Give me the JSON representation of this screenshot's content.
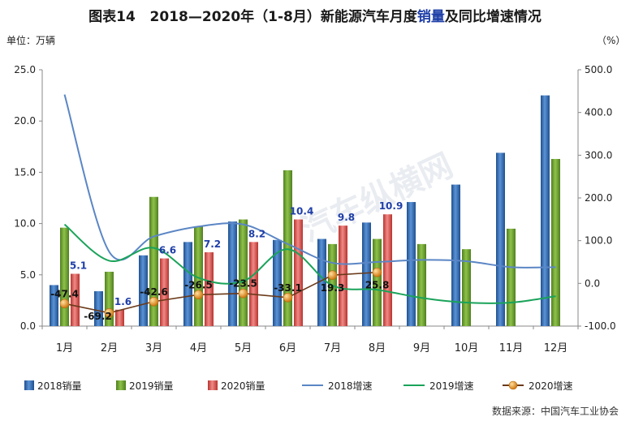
{
  "title_parts": {
    "prefix": "图表14",
    "main": "2018—2020年（1-8月）新能源汽车月度",
    "highlight": "销量",
    "suffix": "及同比增速情况"
  },
  "left_unit": "单位：万辆",
  "right_unit": "（%）",
  "source": "数据来源：中国汽车工业协会",
  "watermark": "汽车纵横网",
  "chart_data": {
    "type": "bar",
    "categories": [
      "1月",
      "2月",
      "3月",
      "4月",
      "5月",
      "6月",
      "7月",
      "8月",
      "9月",
      "10月",
      "11月",
      "12月"
    ],
    "bar_series": [
      {
        "name": "2018销量",
        "color": "#2f6fb5",
        "values": [
          4.0,
          3.4,
          6.9,
          8.2,
          10.2,
          8.4,
          8.5,
          10.1,
          12.1,
          13.8,
          16.9,
          22.5
        ]
      },
      {
        "name": "2019销量",
        "color": "#6fa52f",
        "values": [
          9.6,
          5.3,
          12.6,
          9.7,
          10.4,
          15.2,
          8.0,
          8.5,
          8.0,
          7.5,
          9.5,
          16.3
        ]
      },
      {
        "name": "2020销量",
        "color": "#d9534f",
        "values": [
          5.1,
          1.6,
          6.6,
          7.2,
          8.2,
          10.4,
          9.8,
          10.9
        ]
      }
    ],
    "bar_labels": [
      {
        "category": "1月",
        "text": "5.1"
      },
      {
        "category": "2月",
        "text": "1.6"
      },
      {
        "category": "3月",
        "text": "6.6"
      },
      {
        "category": "4月",
        "text": "7.2"
      },
      {
        "category": "5月",
        "text": "8.2"
      },
      {
        "category": "6月",
        "text": "10.4"
      },
      {
        "category": "7月",
        "text": "9.8"
      },
      {
        "category": "8月",
        "text": "10.9"
      }
    ],
    "line_series": [
      {
        "name": "2018增速",
        "color": "#5b86c5",
        "values": [
          442,
          74,
          110,
          133,
          138,
          92,
          48,
          50,
          55,
          52,
          38,
          38
        ]
      },
      {
        "name": "2019增速",
        "color": "#1aa35a",
        "values": [
          138,
          53,
          83,
          13,
          5,
          80,
          -5,
          -15,
          -34,
          -45,
          -45,
          -30
        ]
      },
      {
        "name": "2020增速",
        "color": "#6a3a1a",
        "marker_color": "#f0a030",
        "values": [
          -47.4,
          -69.2,
          -42.6,
          -26.5,
          -23.5,
          -33.1,
          19.3,
          25.8
        ]
      }
    ],
    "line_labels": [
      "-47.4",
      "-69.2",
      "-42.6",
      "-26.5",
      "-23.5",
      "-33.1",
      "19.3",
      "25.8"
    ],
    "y_left": {
      "min": 0,
      "max": 25,
      "ticks": [
        "0.0",
        "5.0",
        "10.0",
        "15.0",
        "20.0",
        "25.0"
      ]
    },
    "y_right": {
      "min": -100,
      "max": 500,
      "ticks": [
        "-100.0",
        "0.0",
        "100.0",
        "200.0",
        "300.0",
        "400.0",
        "500.0"
      ]
    },
    "legend": [
      "2018销量",
      "2019销量",
      "2020销量",
      "2018增速",
      "2019增速",
      "2020增速"
    ],
    "legend_position": "bottom"
  }
}
